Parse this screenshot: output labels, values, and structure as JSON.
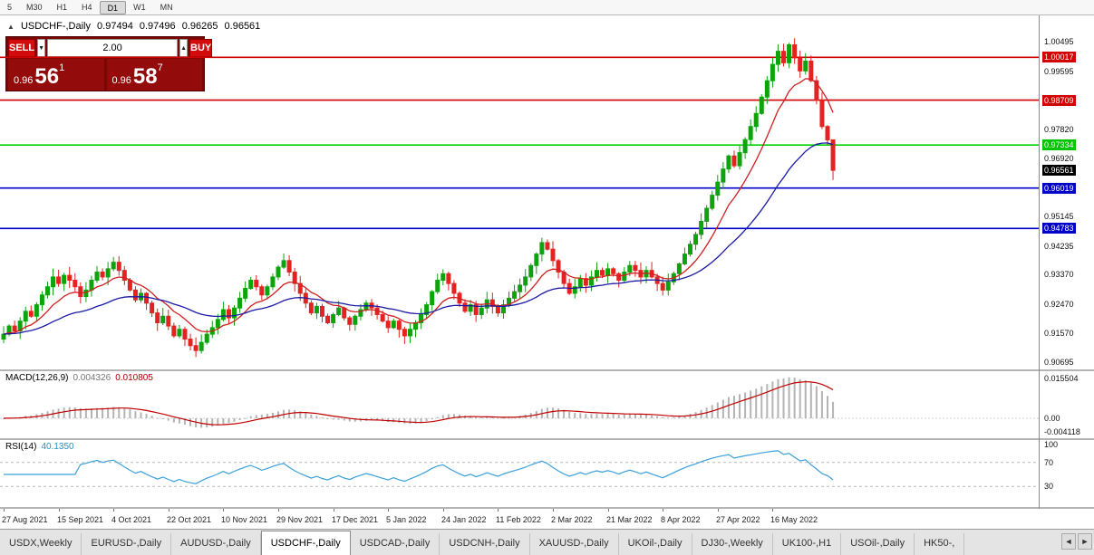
{
  "timeframe_bar": {
    "items": [
      "5",
      "M30",
      "H1",
      "H4",
      "D1",
      "W1",
      "MN"
    ],
    "active": "D1"
  },
  "chart_header": {
    "marker": "▲",
    "title": "USDCHF-,Daily",
    "open": "0.97494",
    "high": "0.97496",
    "low": "0.96265",
    "close": "0.96561"
  },
  "trade_panel": {
    "sell_label": "SELL",
    "buy_label": "BUY",
    "volume": "2.00",
    "spin_down": "▼",
    "spin_up": "▲",
    "sell_price": {
      "prefix": "0.96",
      "big": "56",
      "sup": "1"
    },
    "buy_price": {
      "prefix": "0.96",
      "big": "58",
      "sup": "7"
    }
  },
  "price_axis": [
    {
      "text": "1.00495",
      "type": "plain"
    },
    {
      "text": "1.00017",
      "type": "red"
    },
    {
      "text": "0.99595",
      "type": "plain"
    },
    {
      "text": "0.98709",
      "type": "red"
    },
    {
      "text": "0.97820",
      "type": "plain"
    },
    {
      "text": "0.97334",
      "type": "green"
    },
    {
      "text": "0.96920",
      "type": "plain"
    },
    {
      "text": "0.96561",
      "type": "current"
    },
    {
      "text": "0.96019",
      "type": "blue"
    },
    {
      "text": "0.95145",
      "type": "plain"
    },
    {
      "text": "0.94783",
      "type": "blue"
    },
    {
      "text": "0.94235",
      "type": "plain"
    },
    {
      "text": "0.93370",
      "type": "plain"
    },
    {
      "text": "0.92470",
      "type": "plain"
    },
    {
      "text": "0.91570",
      "type": "plain"
    },
    {
      "text": "0.90695",
      "type": "plain"
    }
  ],
  "macd_panel": {
    "title": "MACD(12,26,9)",
    "value1": "0.004326",
    "value2": "0.010805",
    "axis_top": "0.015504",
    "axis_zero": "0.00",
    "axis_bottom": "-0.004118"
  },
  "rsi_panel": {
    "title": "RSI(14)",
    "value": "40.1350",
    "axis_top": "100",
    "axis_upper": "70",
    "axis_lower": "30"
  },
  "date_axis": [
    "27 Aug 2021",
    "15 Sep 2021",
    "4 Oct 2021",
    "22 Oct 2021",
    "10 Nov 2021",
    "29 Nov 2021",
    "17 Dec 2021",
    "5 Jan 2022",
    "24 Jan 2022",
    "11 Feb 2022",
    "2 Mar 2022",
    "21 Mar 2022",
    "8 Apr 2022",
    "27 Apr 2022",
    "16 May 2022"
  ],
  "symbol_tabs": {
    "tabs": [
      "USDX,Weekly",
      "EURUSD-,Daily",
      "AUDUSD-,Daily",
      "USDCHF-,Daily",
      "USDCAD-,Daily",
      "USDCNH-,Daily",
      "XAUUSD-,Daily",
      "UKOil-,Daily",
      "DJ30-,Weekly",
      "UK100-,H1",
      "USOil-,Daily",
      "HK50-,"
    ],
    "active": "USDCHF-,Daily",
    "nav_left": "◄",
    "nav_right": "►"
  },
  "chart_data": {
    "type": "candlestick",
    "symbol": "USDCHF-",
    "timeframe": "Daily",
    "title": "USDCHF-,Daily",
    "ohlc_current": {
      "open": 0.97494,
      "high": 0.97496,
      "low": 0.96265,
      "close": 0.96561
    },
    "ylim": [
      0.90695,
      1.00495
    ],
    "closes": [
      0.9155,
      0.918,
      0.9165,
      0.9195,
      0.9225,
      0.921,
      0.9245,
      0.9275,
      0.93,
      0.933,
      0.931,
      0.9335,
      0.932,
      0.93,
      0.927,
      0.929,
      0.932,
      0.9345,
      0.933,
      0.9355,
      0.9375,
      0.935,
      0.932,
      0.929,
      0.926,
      0.928,
      0.925,
      0.922,
      0.919,
      0.921,
      0.918,
      0.915,
      0.917,
      0.914,
      0.912,
      0.9105,
      0.913,
      0.9155,
      0.9175,
      0.92,
      0.923,
      0.9205,
      0.9235,
      0.9265,
      0.9295,
      0.932,
      0.93,
      0.9275,
      0.93,
      0.933,
      0.936,
      0.938,
      0.9345,
      0.931,
      0.928,
      0.925,
      0.922,
      0.924,
      0.921,
      0.919,
      0.9215,
      0.9235,
      0.9205,
      0.9185,
      0.921,
      0.923,
      0.925,
      0.9235,
      0.9215,
      0.9195,
      0.9175,
      0.9195,
      0.917,
      0.915,
      0.917,
      0.919,
      0.9215,
      0.9245,
      0.9285,
      0.932,
      0.934,
      0.931,
      0.928,
      0.925,
      0.9225,
      0.9245,
      0.9215,
      0.9235,
      0.926,
      0.924,
      0.922,
      0.9245,
      0.9265,
      0.9285,
      0.9305,
      0.933,
      0.9365,
      0.94,
      0.9435,
      0.9415,
      0.938,
      0.9345,
      0.931,
      0.928,
      0.93,
      0.9325,
      0.9305,
      0.933,
      0.935,
      0.9335,
      0.9355,
      0.934,
      0.932,
      0.9345,
      0.9365,
      0.935,
      0.933,
      0.935,
      0.933,
      0.931,
      0.929,
      0.9315,
      0.934,
      0.937,
      0.94,
      0.943,
      0.946,
      0.95,
      0.954,
      0.958,
      0.962,
      0.966,
      0.97,
      0.967,
      0.971,
      0.975,
      0.979,
      0.983,
      0.988,
      0.993,
      0.998,
      1.002,
      0.9985,
      1.004,
      1.0,
      0.996,
      0.999,
      0.993,
      0.987,
      0.979,
      0.9749,
      0.9656
    ],
    "levels": [
      {
        "value": 1.00017,
        "color": "#d20000",
        "label": "1.00017"
      },
      {
        "value": 0.98709,
        "color": "#d20000",
        "label": "0.98709"
      },
      {
        "value": 0.97334,
        "color": "#00d200",
        "label": "0.97334"
      },
      {
        "value": 0.96019,
        "color": "#0000c8",
        "label": "0.96019"
      },
      {
        "value": 0.94783,
        "color": "#0000c8",
        "label": "0.94783"
      }
    ],
    "current_price": 0.96561,
    "moving_averages": [
      {
        "period": 10,
        "color": "#d02020"
      },
      {
        "period": 32,
        "color": "#1a1aa6"
      }
    ],
    "indicators": [
      {
        "name": "MACD",
        "params": "12,26,9",
        "values": [
          0.004326,
          0.010805
        ],
        "axis": [
          "0.015504",
          "0.00",
          "-0.004118"
        ]
      },
      {
        "name": "RSI",
        "params": "14",
        "value": 40.135,
        "axis": [
          "100",
          "70",
          "30"
        ],
        "upper_level": 70,
        "lower_level": 30
      }
    ],
    "colors": {
      "candle_up": "#0ca30c",
      "candle_down": "#e32222",
      "ma_fast": "#d02020",
      "ma_slow": "#1a1aa6",
      "macd_hist": "#b4b4b4",
      "macd_signal": "#c00000",
      "rsi_line": "#3aa0dc",
      "current_label_bg": "#000000"
    }
  }
}
